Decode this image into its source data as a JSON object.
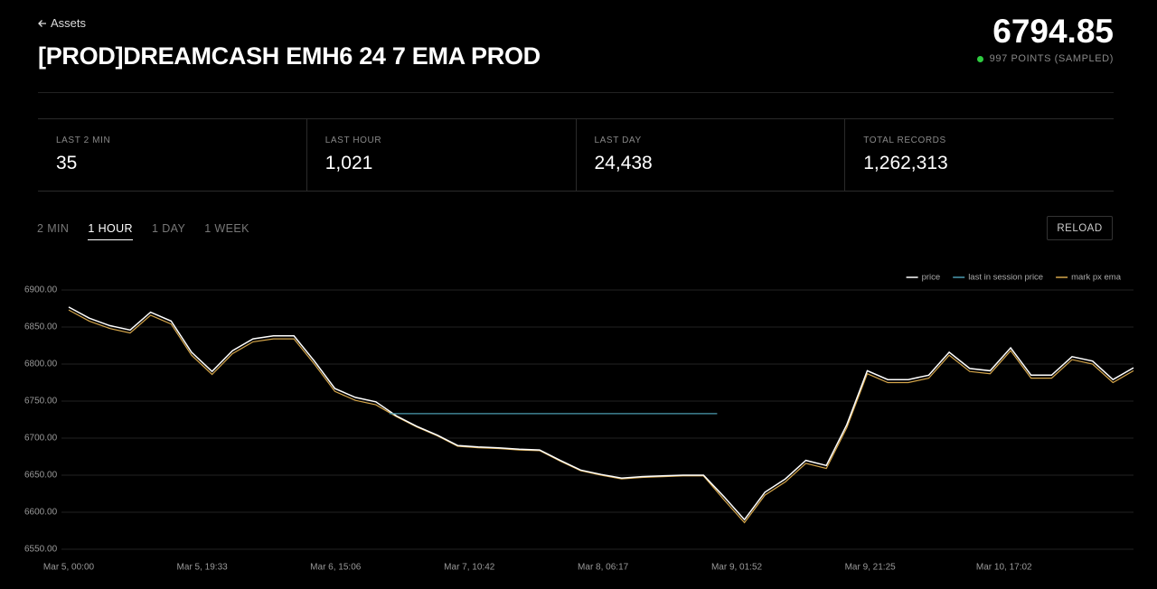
{
  "header": {
    "back": "Assets",
    "title": "[PROD]DREAMCASH EMH6 24 7 EMA PROD",
    "value": "6794.85",
    "points": "997 POINTS (SAMPLED)"
  },
  "stats": [
    {
      "label": "LAST 2 MIN",
      "value": "35"
    },
    {
      "label": "LAST HOUR",
      "value": "1,021"
    },
    {
      "label": "LAST DAY",
      "value": "24,438"
    },
    {
      "label": "TOTAL RECORDS",
      "value": "1,262,313"
    }
  ],
  "tabs": [
    "2 MIN",
    "1 HOUR",
    "1 DAY",
    "1 WEEK"
  ],
  "active_tab": 1,
  "reload": "RELOAD",
  "chart_data": {
    "type": "line",
    "legend": "top-right",
    "grid": true,
    "x": [
      "Mar 5, 00:00",
      "Mar 5, 03:00",
      "Mar 5, 06:00",
      "Mar 5, 09:00",
      "Mar 5, 12:00",
      "Mar 5, 15:00",
      "Mar 5, 18:00",
      "Mar 5, 21:00",
      "Mar 6, 00:00",
      "Mar 6, 03:00",
      "Mar 6, 06:00",
      "Mar 6, 09:00",
      "Mar 6, 12:00",
      "Mar 6, 15:00",
      "Mar 6, 18:00",
      "Mar 6, 21:00",
      "Mar 7, 00:00",
      "Mar 7, 03:00",
      "Mar 7, 06:00",
      "Mar 7, 09:00",
      "Mar 7, 12:00",
      "Mar 7, 15:00",
      "Mar 7, 18:00",
      "Mar 7, 21:00",
      "Mar 8, 00:00",
      "Mar 8, 03:00",
      "Mar 8, 06:00",
      "Mar 8, 09:00",
      "Mar 8, 12:00",
      "Mar 8, 15:00",
      "Mar 8, 18:00",
      "Mar 8, 21:00",
      "Mar 9, 00:00",
      "Mar 9, 03:00",
      "Mar 9, 06:00",
      "Mar 9, 09:00",
      "Mar 9, 12:00",
      "Mar 9, 15:00",
      "Mar 9, 18:00",
      "Mar 9, 21:00",
      "Mar 10, 00:00",
      "Mar 10, 03:00",
      "Mar 10, 06:00",
      "Mar 10, 09:00",
      "Mar 10, 12:00",
      "Mar 10, 15:00",
      "Mar 10, 18:00",
      "Mar 10, 21:00",
      "Mar 11, 00:00",
      "Mar 11, 03:00",
      "Mar 11, 06:00",
      "Mar 11, 09:00",
      "Mar 11, 12:00"
    ],
    "series": [
      {
        "name": "price",
        "color": "#ffffff",
        "values": [
          6877,
          6862,
          6852,
          6846,
          6870,
          6858,
          6816,
          6790,
          6818,
          6834,
          6838,
          6838,
          6804,
          6767,
          6755,
          6749,
          6730,
          6716,
          6704,
          6690,
          6688,
          6687,
          6685,
          6684,
          6670,
          6657,
          6651,
          6646,
          6648,
          6649,
          6650,
          6650,
          6621,
          6590,
          6627,
          6645,
          6670,
          6663,
          6718,
          6791,
          6779,
          6779,
          6785,
          6816,
          6794,
          6791,
          6822,
          6785,
          6785,
          6810,
          6804,
          6779,
          6795
        ]
      },
      {
        "name": "last in session price",
        "color": "#4a9bb0",
        "x": [
          "Mar 6, 23:00",
          "Mar 8, 23:00"
        ],
        "values": [
          6733,
          6733
        ]
      },
      {
        "name": "mark px ema",
        "color": "#d4a54a",
        "values": [
          6873,
          6858,
          6848,
          6842,
          6866,
          6854,
          6812,
          6786,
          6814,
          6830,
          6834,
          6834,
          6800,
          6763,
          6751,
          6745,
          6729,
          6715,
          6703,
          6689,
          6687,
          6686,
          6684,
          6683,
          6669,
          6656,
          6650,
          6645,
          6647,
          6648,
          6649,
          6649,
          6617,
          6586,
          6623,
          6641,
          6666,
          6659,
          6714,
          6787,
          6775,
          6775,
          6781,
          6812,
          6790,
          6787,
          6818,
          6781,
          6781,
          6806,
          6800,
          6775,
          6791
        ]
      }
    ],
    "xlim": [
      "Mar 5, 00:00",
      "Mar 11, 12:00"
    ],
    "xticks": [
      "Mar 5, 00:00",
      "Mar 5, 19:33",
      "Mar 6, 15:06",
      "Mar 7, 10:42",
      "Mar 8, 06:17",
      "Mar 9, 01:52",
      "Mar 9, 21:25",
      "Mar 10, 17:02"
    ],
    "ylim": [
      6550,
      6900
    ],
    "yticks": [
      {
        "value": 6550,
        "label": "6550.00"
      },
      {
        "value": 6600,
        "label": "6600.00"
      },
      {
        "value": 6650,
        "label": "6650.00"
      },
      {
        "value": 6700,
        "label": "6700.00"
      },
      {
        "value": 6750,
        "label": "6750.00"
      },
      {
        "value": 6800,
        "label": "6800.00"
      },
      {
        "value": 6850,
        "label": "6850.00"
      },
      {
        "value": 6900,
        "label": "6900.00"
      }
    ]
  }
}
